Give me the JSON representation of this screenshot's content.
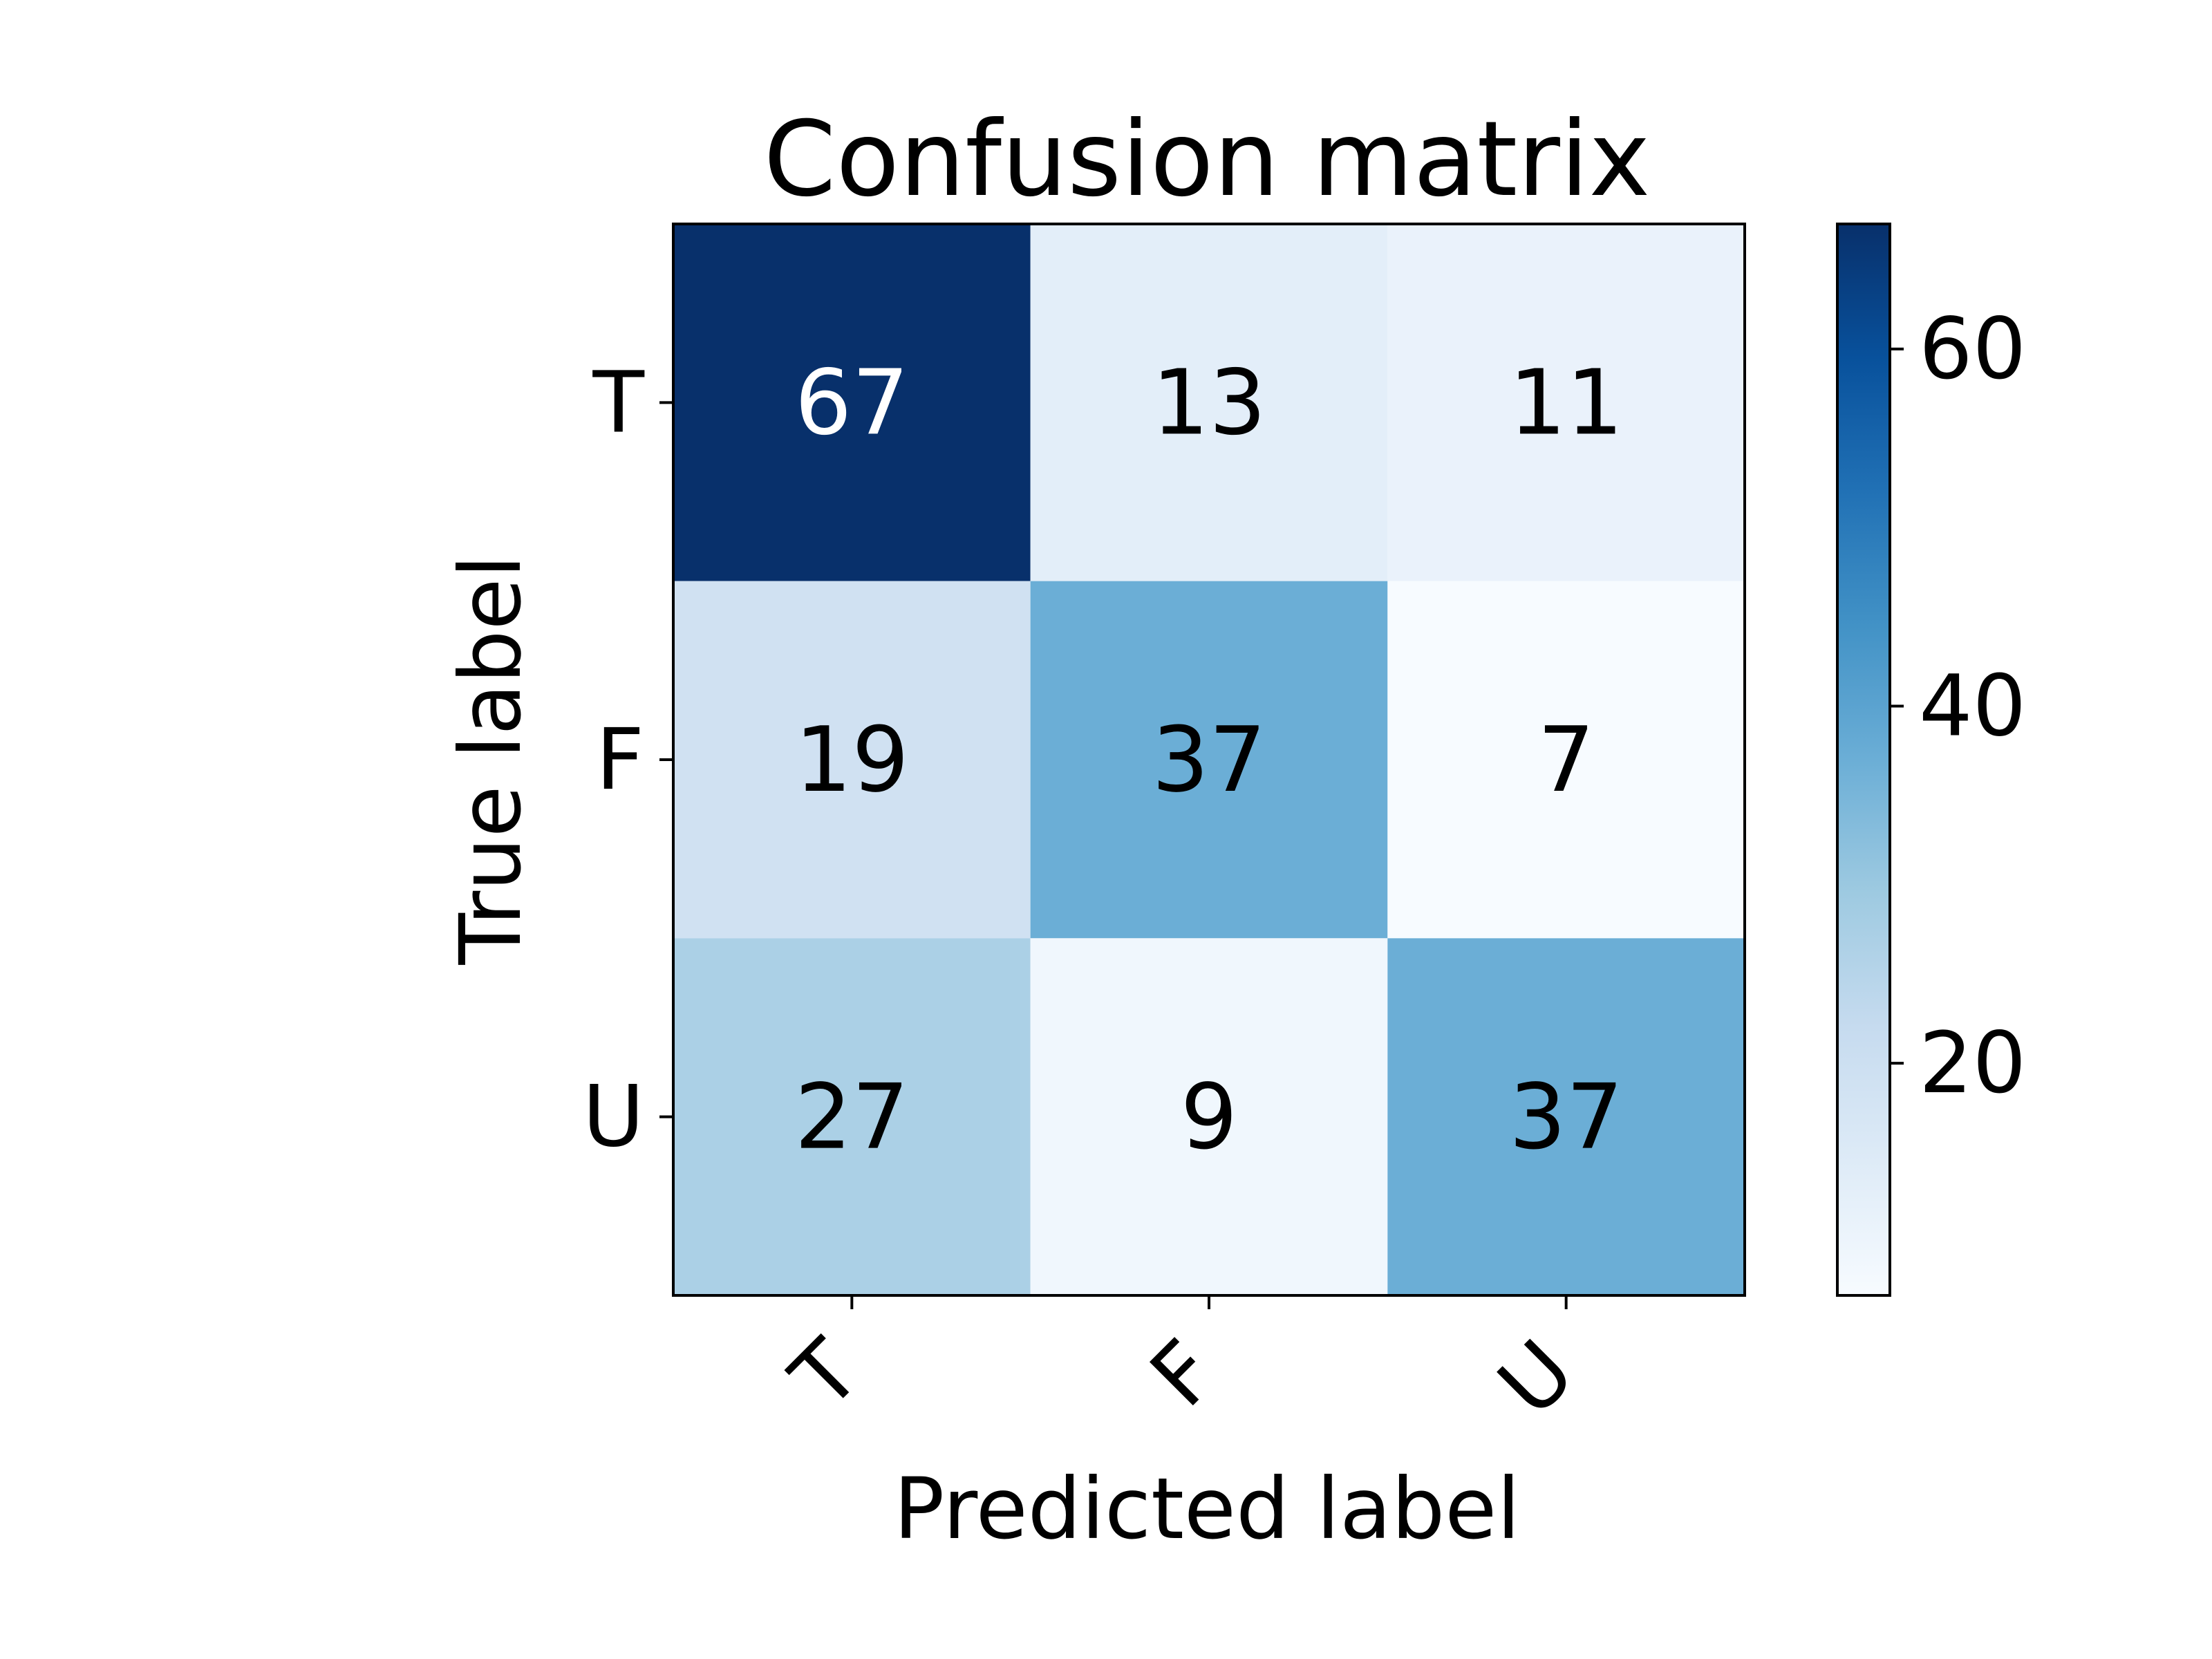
{
  "chart_data": {
    "type": "heatmap",
    "title": "Confusion matrix",
    "xlabel": "Predicted label",
    "ylabel": "True label",
    "x_categories": [
      "T",
      "F",
      "U"
    ],
    "y_categories": [
      "T",
      "F",
      "U"
    ],
    "values": [
      [
        67,
        13,
        11
      ],
      [
        19,
        37,
        7
      ],
      [
        27,
        9,
        37
      ]
    ],
    "colormap": "Blues",
    "color_range": [
      7,
      67
    ],
    "colorbar_ticks": [
      20,
      40,
      60
    ],
    "colorbar_tick_labels": [
      "20",
      "40",
      "60"
    ],
    "text_color_light": "#ffffff",
    "text_color_dark": "#000000"
  }
}
